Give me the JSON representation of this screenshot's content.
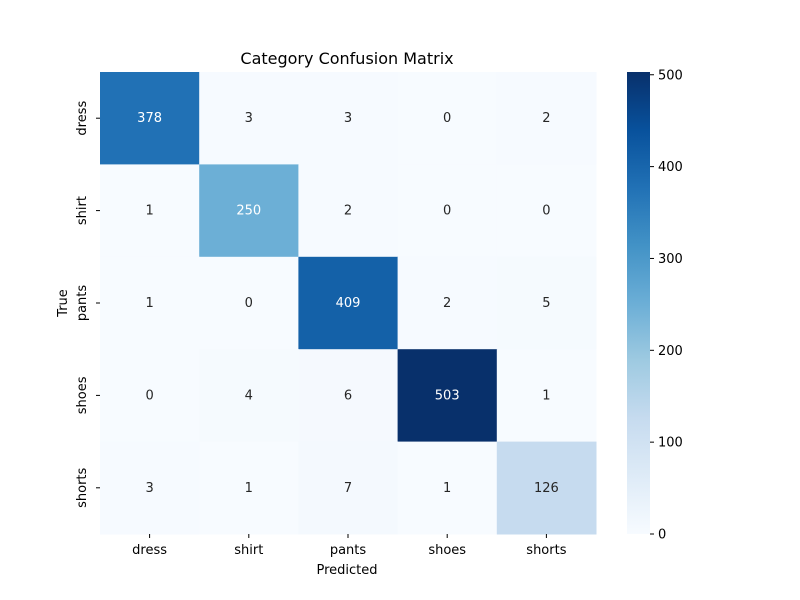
{
  "chart_data": {
    "type": "heatmap",
    "title": "Category Confusion Matrix",
    "xlabel": "Predicted",
    "ylabel": "True",
    "x_categories": [
      "dress",
      "shirt",
      "pants",
      "shoes",
      "shorts"
    ],
    "y_categories": [
      "dress",
      "shirt",
      "pants",
      "shoes",
      "shorts"
    ],
    "values": [
      [
        378,
        3,
        3,
        0,
        2
      ],
      [
        1,
        250,
        2,
        0,
        0
      ],
      [
        1,
        0,
        409,
        2,
        5
      ],
      [
        0,
        4,
        6,
        503,
        1
      ],
      [
        3,
        1,
        7,
        1,
        126
      ]
    ],
    "colorbar": {
      "min": 0,
      "max": 503,
      "ticks": [
        0,
        100,
        200,
        300,
        400,
        500
      ],
      "colormap": "Blues"
    }
  }
}
